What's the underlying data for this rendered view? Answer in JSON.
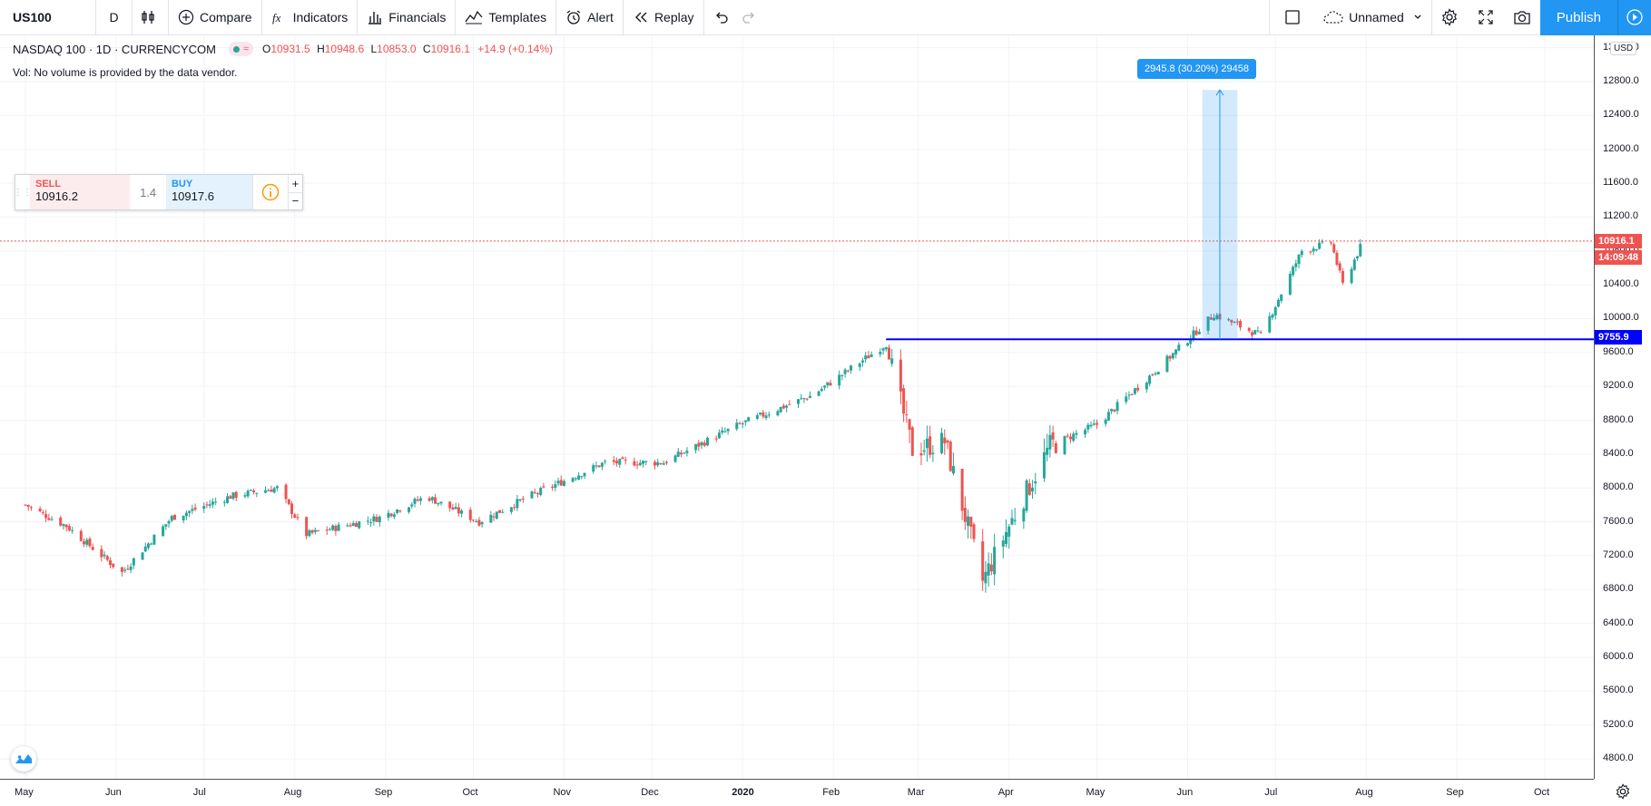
{
  "toolbar": {
    "symbol": "US100",
    "interval": "D",
    "compare": "Compare",
    "indicators": "Indicators",
    "financials": "Financials",
    "templates": "Templates",
    "alert": "Alert",
    "replay": "Replay",
    "layout_name": "Unnamed",
    "publish": "Publish"
  },
  "legend": {
    "title": "NASDAQ 100 · 1D · CURRENCYCOM",
    "o_label": "O",
    "o": "10931.5",
    "h_label": "H",
    "h": "10948.6",
    "l_label": "L",
    "l": "10853.0",
    "c_label": "C",
    "c": "10916.1",
    "change": "+14.9 (+0.14%)",
    "volume_note": "Vol: No volume is provided by the data vendor."
  },
  "trade_panel": {
    "sell_label": "SELL",
    "sell_price": "10916.2",
    "spread": "1.4",
    "buy_label": "BUY",
    "buy_price": "10917.6",
    "plus": "+",
    "minus": "−"
  },
  "measure": {
    "label": "2945.8 (30.20%) 29458"
  },
  "price_axis": {
    "currency": "USD",
    "ticks": [
      "13200.0",
      "12800.0",
      "12400.0",
      "12000.0",
      "11600.0",
      "11200.0",
      "10800.0",
      "10400.0",
      "10000.0",
      "9600.0",
      "9200.0",
      "8800.0",
      "8400.0",
      "8000.0",
      "7600.0",
      "7200.0",
      "6800.0",
      "6400.0",
      "6000.0",
      "5600.0",
      "5200.0",
      "4800.0"
    ],
    "current_price": "10916.1",
    "countdown": "14:09:48",
    "hline_price": "9755.9"
  },
  "time_axis": {
    "labels": [
      "May",
      "Jun",
      "Jul",
      "Aug",
      "Sep",
      "Oct",
      "Nov",
      "Dec",
      "2020",
      "Feb",
      "Mar",
      "Apr",
      "May",
      "Jun",
      "Jul",
      "Aug",
      "Sep",
      "Oct"
    ]
  },
  "colors": {
    "up": "#26a69a",
    "down": "#ef5350",
    "hline": "#0000ff",
    "accent": "#2196f3"
  },
  "chart_data": {
    "type": "candlestick",
    "title": "NASDAQ 100 · 1D · CURRENCYCOM",
    "ylim": [
      4600,
      13300
    ],
    "x_labels": [
      "May",
      "Jun",
      "Jul",
      "Aug",
      "Sep",
      "Oct",
      "Nov",
      "Dec",
      "2020",
      "Feb",
      "Mar",
      "Apr",
      "May",
      "Jun",
      "Jul",
      "Aug",
      "Sep",
      "Oct"
    ],
    "close_path_approx": [
      {
        "date": "2019-05-01",
        "close": 7800
      },
      {
        "date": "2019-05-15",
        "close": 7550
      },
      {
        "date": "2019-06-03",
        "close": 7000
      },
      {
        "date": "2019-06-20",
        "close": 7650
      },
      {
        "date": "2019-07-10",
        "close": 7900
      },
      {
        "date": "2019-07-26",
        "close": 8000
      },
      {
        "date": "2019-08-05",
        "close": 7450
      },
      {
        "date": "2019-08-30",
        "close": 7650
      },
      {
        "date": "2019-09-15",
        "close": 7900
      },
      {
        "date": "2019-10-03",
        "close": 7600
      },
      {
        "date": "2019-10-20",
        "close": 7900
      },
      {
        "date": "2019-11-15",
        "close": 8300
      },
      {
        "date": "2019-12-05",
        "close": 8300
      },
      {
        "date": "2019-12-31",
        "close": 8750
      },
      {
        "date": "2020-01-25",
        "close": 9100
      },
      {
        "date": "2020-02-19",
        "close": 9700
      },
      {
        "date": "2020-02-28",
        "close": 8450
      },
      {
        "date": "2020-03-10",
        "close": 8550
      },
      {
        "date": "2020-03-23",
        "close": 6900
      },
      {
        "date": "2020-04-01",
        "close": 7550
      },
      {
        "date": "2020-04-15",
        "close": 8500
      },
      {
        "date": "2020-05-01",
        "close": 8750
      },
      {
        "date": "2020-05-20",
        "close": 9350
      },
      {
        "date": "2020-06-10",
        "close": 10050
      },
      {
        "date": "2020-06-26",
        "close": 9800
      },
      {
        "date": "2020-07-10",
        "close": 10800
      },
      {
        "date": "2020-07-20",
        "close": 10900
      },
      {
        "date": "2020-07-24",
        "close": 10400
      },
      {
        "date": "2020-07-31",
        "close": 10916.1
      }
    ],
    "horizontal_line": 9755.9,
    "measure": {
      "from": 9755.9,
      "to": 12701.7,
      "change": "2945.8",
      "percent": "30.20%"
    }
  }
}
